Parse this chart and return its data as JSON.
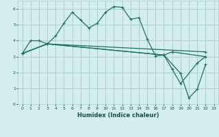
{
  "xlabel": "Humidex (Indice chaleur)",
  "bg_color": "#d4eeee",
  "grid_color": "#aacece",
  "line_color": "#1a6e64",
  "xlim": [
    -0.5,
    23.5
  ],
  "ylim": [
    0,
    6.5
  ],
  "xticks": [
    0,
    1,
    2,
    3,
    4,
    5,
    6,
    7,
    8,
    9,
    10,
    11,
    12,
    13,
    14,
    15,
    16,
    17,
    18,
    19,
    20,
    21,
    22,
    23
  ],
  "yticks": [
    0,
    1,
    2,
    3,
    4,
    5,
    6
  ],
  "line1_x": [
    0,
    1,
    2,
    3,
    4,
    5,
    6,
    7,
    8,
    9,
    10,
    11,
    12,
    13,
    14,
    15,
    16,
    17,
    18,
    22
  ],
  "line1_y": [
    3.2,
    4.0,
    4.0,
    3.8,
    4.3,
    5.1,
    5.8,
    5.3,
    4.8,
    5.1,
    5.8,
    6.15,
    6.1,
    5.35,
    5.45,
    4.1,
    3.05,
    3.1,
    3.3,
    3.0
  ],
  "line2_x": [
    0,
    3,
    22
  ],
  "line2_y": [
    3.2,
    3.8,
    3.3
  ],
  "line3_x": [
    0,
    3,
    17,
    19,
    20,
    21,
    22
  ],
  "line3_y": [
    3.2,
    3.8,
    3.1,
    1.95,
    0.4,
    0.95,
    2.5
  ],
  "line4_x": [
    0,
    3,
    17,
    18,
    19,
    21,
    22
  ],
  "line4_y": [
    3.2,
    3.8,
    3.1,
    2.2,
    1.3,
    2.6,
    3.0
  ]
}
